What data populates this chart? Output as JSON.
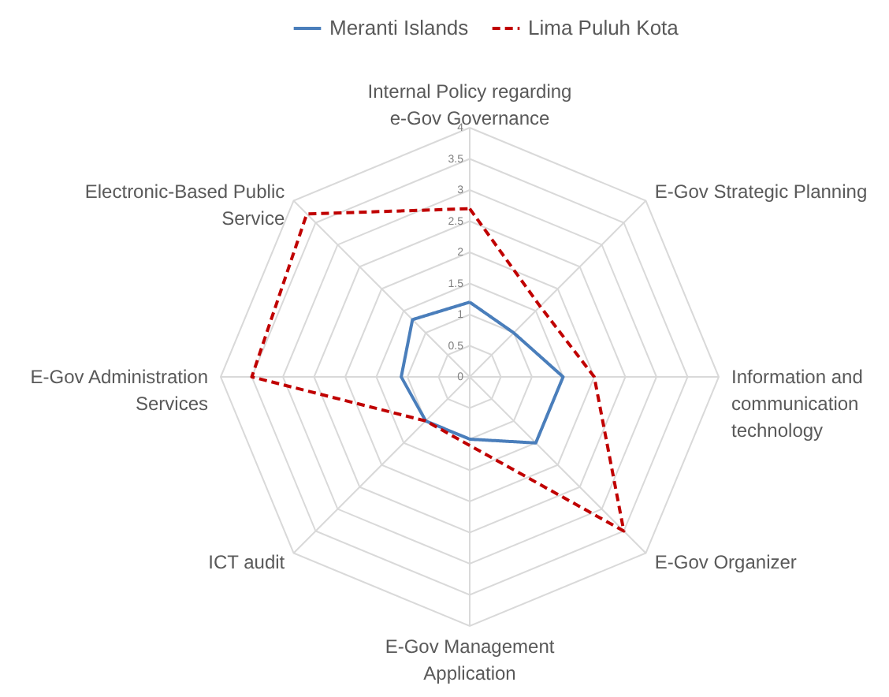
{
  "chart_data": {
    "type": "radar",
    "categories": [
      "Internal Policy regarding e-Gov Governance",
      "E-Gov Strategic Planning",
      "Information and communication technology",
      "E-Gov Organizer",
      "E-Gov Management Application",
      "ICT audit",
      "E-Gov Administration Services",
      "Electronic-Based Public Service"
    ],
    "series": [
      {
        "name": "Meranti Islands",
        "color": "#4a7ebb",
        "line_style": "solid",
        "values": [
          1.2,
          1.0,
          1.5,
          1.5,
          1.0,
          1.0,
          1.1,
          1.3
        ]
      },
      {
        "name": "Lima Puluh Kota",
        "color": "#c00000",
        "line_style": "dashed",
        "values": [
          2.7,
          1.6,
          2.0,
          3.5,
          1.1,
          1.0,
          3.5,
          3.7
        ]
      }
    ],
    "ylim": [
      0,
      4
    ],
    "yticks": [
      0,
      0.5,
      1,
      1.5,
      2,
      2.5,
      3,
      3.5,
      4
    ],
    "grid": true,
    "legend": "top"
  }
}
